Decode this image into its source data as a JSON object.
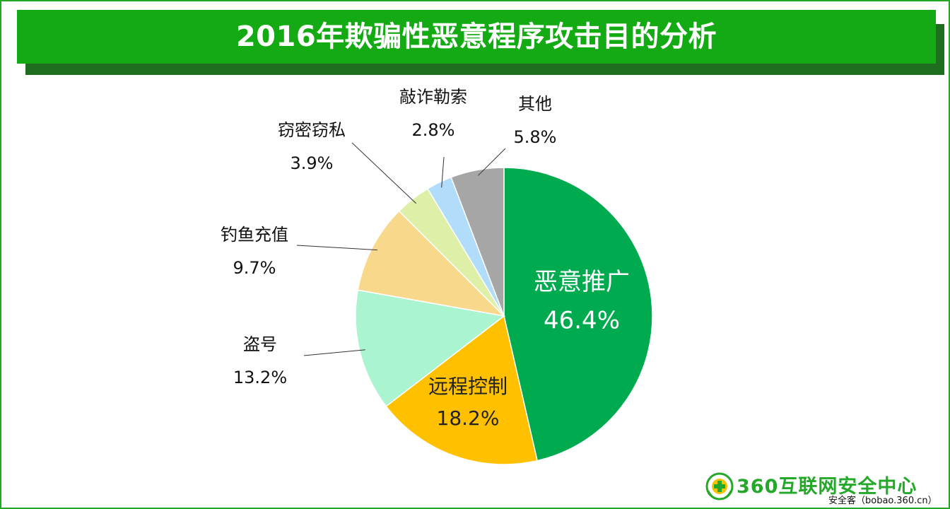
{
  "title": "2016年欺骗性恶意程序攻击目的分析",
  "chart_data": {
    "type": "pie",
    "title": "2016年欺骗性恶意程序攻击目的分析",
    "start": "12 o'clock, clockwise",
    "slices": [
      {
        "label": "恶意推广",
        "value": 46.4,
        "value_text": "46.4%",
        "color": "#00ab4f",
        "label_color": "#ffffff",
        "inside": true
      },
      {
        "label": "远程控制",
        "value": 18.2,
        "value_text": "18.2%",
        "color": "#ffc000",
        "label_color": "#222222",
        "inside": true
      },
      {
        "label": "盗号",
        "value": 13.2,
        "value_text": "13.2%",
        "color": "#aaf4d0",
        "label_color": "#111111",
        "inside": false
      },
      {
        "label": "钓鱼充值",
        "value": 9.7,
        "value_text": "9.7%",
        "color": "#f8d98c",
        "label_color": "#111111",
        "inside": false
      },
      {
        "label": "窃密窃私",
        "value": 3.9,
        "value_text": "3.9%",
        "color": "#def0a8",
        "label_color": "#111111",
        "inside": false
      },
      {
        "label": "敲诈勒索",
        "value": 2.8,
        "value_text": "2.8%",
        "color": "#b1ddfa",
        "label_color": "#111111",
        "inside": false
      },
      {
        "label": "其他",
        "value": 5.8,
        "value_text": "5.8%",
        "color": "#a6a6a6",
        "label_color": "#111111",
        "inside": false
      }
    ]
  },
  "logo": {
    "text": "360互联网安全中心",
    "subtext": "安全客（bobao.360.cn）",
    "color": "#23a829"
  }
}
